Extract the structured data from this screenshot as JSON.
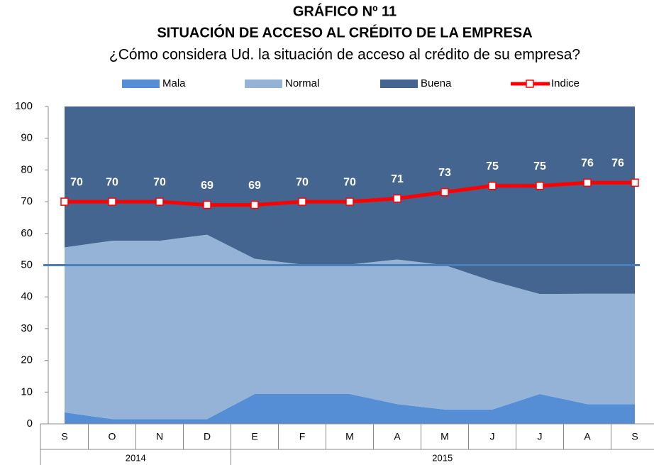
{
  "chart_data": {
    "type": "area",
    "title": "GRÁFICO Nº 11",
    "subtitle": "SITUACIÓN DE ACCESO AL CRÉDITO DE LA EMPRESA",
    "question": "¿Cómo considera Ud. la situación de acceso al crédito de su empresa?",
    "categories": [
      "S",
      "O",
      "N",
      "D",
      "E",
      "F",
      "M",
      "A",
      "M",
      "J",
      "J",
      "A",
      "S"
    ],
    "x_groups": [
      "2014",
      "2014",
      "2014",
      "2014",
      "2015",
      "2015",
      "2015",
      "2015",
      "2015",
      "2015",
      "2015",
      "2015",
      "2015"
    ],
    "series": [
      {
        "name": "Mala",
        "type": "area",
        "color": "#558ed5",
        "values": [
          3.6,
          1.5,
          1.5,
          1.5,
          9.4,
          9.4,
          9.4,
          6.2,
          4.5,
          4.5,
          9.4,
          6.2,
          6.2
        ]
      },
      {
        "name": "Normal",
        "type": "area",
        "color": "#95b3d7",
        "values": [
          52,
          56.2,
          56.2,
          58.1,
          42.6,
          40.8,
          40.8,
          45.6,
          45.5,
          40.5,
          31.5,
          34.8,
          34.8
        ]
      },
      {
        "name": "Buena",
        "type": "area",
        "color": "#44658f",
        "values": [
          44.4,
          42.3,
          42.3,
          40.4,
          48,
          49.8,
          49.8,
          48.2,
          50,
          55,
          59.1,
          59,
          59
        ]
      },
      {
        "name": "Indice",
        "type": "line",
        "color": "#ff0000",
        "values": [
          70,
          70,
          70,
          69,
          69,
          70,
          70,
          71,
          73,
          75,
          75,
          76,
          76
        ]
      }
    ],
    "reference_line": {
      "value": 50,
      "color": "#4a7ebb"
    },
    "ylim": [
      0,
      100
    ],
    "yticks": [
      0,
      10,
      20,
      30,
      40,
      50,
      60,
      70,
      80,
      90,
      100
    ],
    "grid": false
  }
}
